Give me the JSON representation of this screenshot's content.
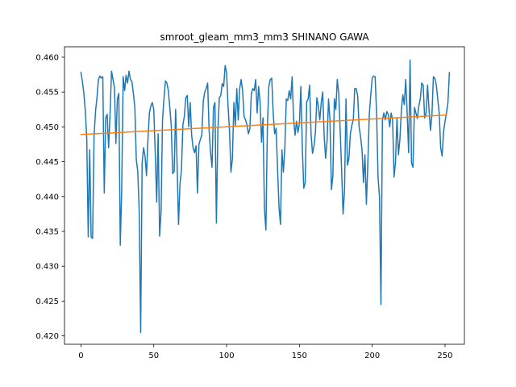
{
  "chart_data": {
    "type": "line",
    "title": "smroot_gleam_mm3_mm3 SHINANO GAWA",
    "xlabel": "",
    "ylabel": "",
    "xlim": [
      -11.3,
      263.3
    ],
    "ylim": [
      0.4188,
      0.4615
    ],
    "xticks": [
      0,
      50,
      100,
      150,
      200,
      250
    ],
    "yticks": [
      0.42,
      0.425,
      0.43,
      0.435,
      0.44,
      0.445,
      0.45,
      0.455,
      0.46
    ],
    "ytick_labels": [
      "0.420",
      "0.425",
      "0.430",
      "0.435",
      "0.440",
      "0.445",
      "0.450",
      "0.455",
      "0.460"
    ],
    "grid": false,
    "series": [
      {
        "color": "#1f77b4",
        "values": [
          0.4578,
          0.4565,
          0.4548,
          0.4523,
          0.4482,
          0.4342,
          0.4467,
          0.4342,
          0.434,
          0.4487,
          0.4522,
          0.4542,
          0.4568,
          0.4573,
          0.457,
          0.4572,
          0.4405,
          0.4513,
          0.4518,
          0.447,
          0.452,
          0.458,
          0.4568,
          0.4557,
          0.4476,
          0.454,
          0.4548,
          0.433,
          0.4412,
          0.4572,
          0.4552,
          0.4574,
          0.4563,
          0.458,
          0.4568,
          0.4565,
          0.4548,
          0.4528,
          0.4453,
          0.4436,
          0.438,
          0.4205,
          0.4448,
          0.447,
          0.4458,
          0.443,
          0.4482,
          0.452,
          0.453,
          0.4535,
          0.4525,
          0.4463,
          0.4392,
          0.449,
          0.4343,
          0.4378,
          0.451,
          0.454,
          0.4566,
          0.4563,
          0.4552,
          0.4528,
          0.4502,
          0.4433,
          0.4436,
          0.4525,
          0.4448,
          0.436,
          0.4418,
          0.4438,
          0.4503,
          0.4515,
          0.4542,
          0.4545,
          0.45,
          0.4535,
          0.4488,
          0.447,
          0.4463,
          0.4473,
          0.4405,
          0.4475,
          0.4482,
          0.4488,
          0.4537,
          0.455,
          0.4555,
          0.4563,
          0.4495,
          0.4463,
          0.4442,
          0.4528,
          0.4535,
          0.4362,
          0.4493,
          0.4542,
          0.4545,
          0.4562,
          0.4558,
          0.4588,
          0.4578,
          0.453,
          0.4495,
          0.4435,
          0.4455,
          0.4535,
          0.4502,
          0.4555,
          0.451,
          0.4555,
          0.4568,
          0.4552,
          0.4515,
          0.451,
          0.4503,
          0.449,
          0.4498,
          0.4548,
          0.4555,
          0.4552,
          0.4568,
          0.452,
          0.4558,
          0.4535,
          0.4478,
          0.4513,
          0.4382,
          0.4352,
          0.4498,
          0.4558,
          0.4568,
          0.457,
          0.452,
          0.449,
          0.4498,
          0.444,
          0.4385,
          0.436,
          0.4467,
          0.4435,
          0.447,
          0.454,
          0.4538,
          0.4552,
          0.454,
          0.4572,
          0.4512,
          0.4488,
          0.4508,
          0.4492,
          0.4505,
          0.4558,
          0.447,
          0.4412,
          0.442,
          0.4536,
          0.454,
          0.456,
          0.449,
          0.4462,
          0.4472,
          0.4492,
          0.4542,
          0.453,
          0.451,
          0.4535,
          0.455,
          0.4487,
          0.4455,
          0.448,
          0.454,
          0.451,
          0.441,
          0.443,
          0.454,
          0.4525,
          0.4568,
          0.4548,
          0.4495,
          0.4437,
          0.4375,
          0.441,
          0.454,
          0.4445,
          0.4455,
          0.449,
          0.4502,
          0.451,
          0.4555,
          0.4555,
          0.4545,
          0.45,
          0.4486,
          0.4467,
          0.442,
          0.446,
          0.4389,
          0.4448,
          0.4518,
          0.4546,
          0.457,
          0.4573,
          0.4572,
          0.452,
          0.4428,
          0.44,
          0.4245,
          0.451,
          0.452,
          0.451,
          0.4522,
          0.4518,
          0.45,
          0.452,
          0.451,
          0.4428,
          0.445,
          0.4513,
          0.446,
          0.4482,
          0.4523,
          0.4546,
          0.4532,
          0.4568,
          0.452,
          0.4463,
          0.4596,
          0.4448,
          0.4442,
          0.4528,
          0.452,
          0.4512,
          0.453,
          0.454,
          0.4563,
          0.456,
          0.4513,
          0.452,
          0.456,
          0.4525,
          0.4495,
          0.4517,
          0.4572,
          0.457,
          0.456,
          0.454,
          0.452,
          0.447,
          0.4458,
          0.4493,
          0.4508,
          0.452,
          0.4535,
          0.4578
        ]
      },
      {
        "color": "#ff7f0e",
        "x": [
          0,
          251
        ],
        "values": [
          0.4489,
          0.4517
        ]
      }
    ]
  }
}
